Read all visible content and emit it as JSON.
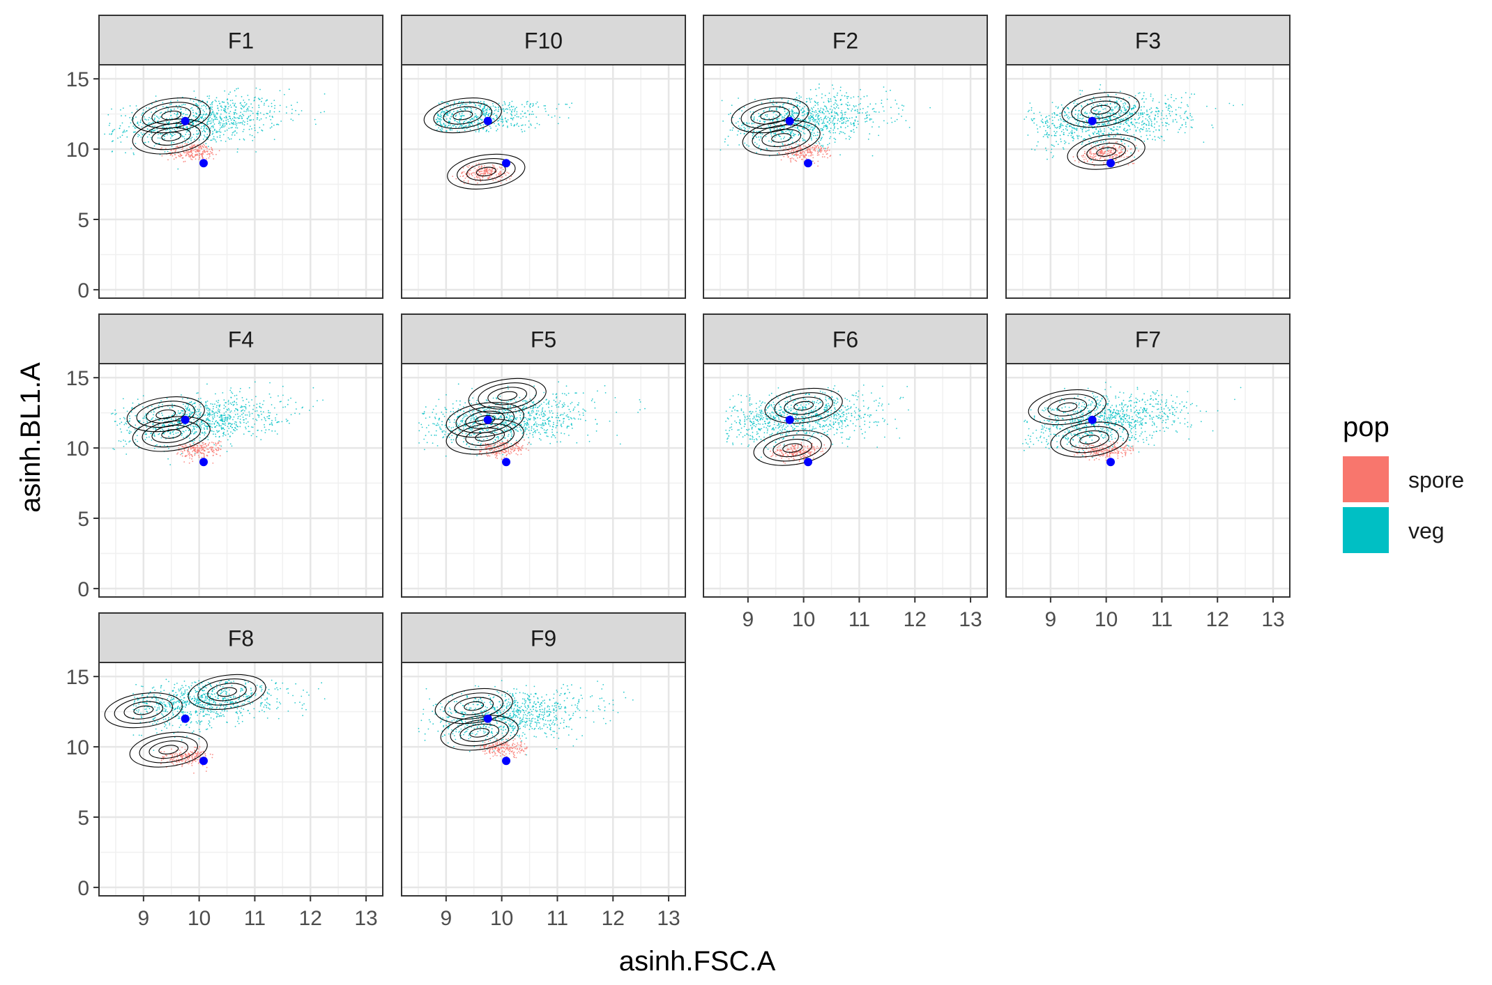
{
  "chart_data": {
    "type": "scatter",
    "facet_variable": "sample",
    "xlabel": "asinh.FSC.A",
    "ylabel": "asinh.BL1.A",
    "xlim": [
      8.2,
      13.3
    ],
    "ylim": [
      -0.6,
      16.0
    ],
    "x_ticks": [
      9,
      10,
      11,
      12,
      13
    ],
    "y_ticks": [
      0,
      5,
      10,
      15
    ],
    "grid": true,
    "legend": {
      "title": "pop",
      "position": "right",
      "entries": [
        {
          "name": "spore",
          "color": "#F8766D"
        },
        {
          "name": "veg",
          "color": "#00BFC4"
        }
      ]
    },
    "reference_points_color": "#0000FF",
    "contour_color": "#000000",
    "panels": [
      {
        "label": "F1",
        "reference_points": [
          {
            "x": 9.75,
            "y": 12.0
          },
          {
            "x": 10.08,
            "y": 9.0
          }
        ],
        "veg": {
          "x_mean": 10.0,
          "y_mean": 12.0,
          "x_range": [
            8.3,
            12.9
          ],
          "y_range": [
            8.5,
            14.8
          ]
        },
        "spore": {
          "x_mean": 9.9,
          "y_mean": 9.8,
          "x_range": [
            9.3,
            10.4
          ],
          "y_range": [
            7.5,
            10.6
          ]
        },
        "contour_peaks": [
          {
            "x": 9.5,
            "y": 12.4
          },
          {
            "x": 9.5,
            "y": 10.9
          }
        ]
      },
      {
        "label": "F10",
        "reference_points": [
          {
            "x": 9.75,
            "y": 12.0
          },
          {
            "x": 10.08,
            "y": 9.0
          }
        ],
        "veg": {
          "x_mean": 9.3,
          "y_mean": 12.3,
          "x_range": [
            8.8,
            11.3
          ],
          "y_range": [
            11.2,
            13.4
          ]
        },
        "spore": {
          "x_mean": 9.7,
          "y_mean": 8.3,
          "x_range": [
            9.1,
            10.3
          ],
          "y_range": [
            6.8,
            9.8
          ]
        },
        "contour_peaks": [
          {
            "x": 9.3,
            "y": 12.4
          },
          {
            "x": 9.72,
            "y": 8.4
          }
        ]
      },
      {
        "label": "F2",
        "reference_points": [
          {
            "x": 9.75,
            "y": 12.0
          },
          {
            "x": 10.08,
            "y": 9.0
          }
        ],
        "veg": {
          "x_mean": 10.0,
          "y_mean": 12.0,
          "x_range": [
            8.5,
            12.9
          ],
          "y_range": [
            8.5,
            14.8
          ]
        },
        "spore": {
          "x_mean": 10.0,
          "y_mean": 9.8,
          "x_range": [
            9.5,
            10.5
          ],
          "y_range": [
            8.0,
            10.6
          ]
        },
        "contour_peaks": [
          {
            "x": 9.4,
            "y": 12.4
          },
          {
            "x": 9.6,
            "y": 10.8
          }
        ]
      },
      {
        "label": "F3",
        "reference_points": [
          {
            "x": 9.75,
            "y": 12.0
          },
          {
            "x": 10.08,
            "y": 9.0
          }
        ],
        "veg": {
          "x_mean": 10.0,
          "y_mean": 12.0,
          "x_range": [
            8.5,
            12.8
          ],
          "y_range": [
            8.0,
            14.8
          ]
        },
        "spore": {
          "x_mean": 10.0,
          "y_mean": 9.7,
          "x_range": [
            9.4,
            10.6
          ],
          "y_range": [
            8.5,
            10.6
          ]
        },
        "contour_peaks": [
          {
            "x": 9.9,
            "y": 12.8
          },
          {
            "x": 10.0,
            "y": 9.8
          }
        ]
      },
      {
        "label": "F4",
        "reference_points": [
          {
            "x": 9.75,
            "y": 12.0
          },
          {
            "x": 10.08,
            "y": 9.0
          }
        ],
        "veg": {
          "x_mean": 10.0,
          "y_mean": 12.0,
          "x_range": [
            8.4,
            12.9
          ],
          "y_range": [
            8.5,
            14.8
          ]
        },
        "spore": {
          "x_mean": 10.0,
          "y_mean": 9.9,
          "x_range": [
            9.6,
            10.4
          ],
          "y_range": [
            8.5,
            10.5
          ]
        },
        "contour_peaks": [
          {
            "x": 9.4,
            "y": 12.4
          },
          {
            "x": 9.5,
            "y": 11.0
          }
        ]
      },
      {
        "label": "F5",
        "reference_points": [
          {
            "x": 9.75,
            "y": 12.0
          },
          {
            "x": 10.08,
            "y": 9.0
          }
        ],
        "veg": {
          "x_mean": 10.1,
          "y_mean": 12.0,
          "x_range": [
            8.5,
            12.9
          ],
          "y_range": [
            8.5,
            14.8
          ]
        },
        "spore": {
          "x_mean": 10.0,
          "y_mean": 9.9,
          "x_range": [
            9.6,
            10.5
          ],
          "y_range": [
            8.8,
            10.6
          ]
        },
        "contour_peaks": [
          {
            "x": 10.1,
            "y": 13.7
          },
          {
            "x": 9.7,
            "y": 12.0
          },
          {
            "x": 9.7,
            "y": 10.8
          }
        ]
      },
      {
        "label": "F6",
        "reference_points": [
          {
            "x": 9.75,
            "y": 12.0
          },
          {
            "x": 10.08,
            "y": 9.0
          }
        ],
        "veg": {
          "x_mean": 9.9,
          "y_mean": 12.2,
          "x_range": [
            8.6,
            12.0
          ],
          "y_range": [
            8.0,
            14.5
          ]
        },
        "spore": {
          "x_mean": 9.9,
          "y_mean": 9.7,
          "x_range": [
            9.4,
            10.4
          ],
          "y_range": [
            8.8,
            10.5
          ]
        },
        "contour_peaks": [
          {
            "x": 10.0,
            "y": 13.0
          },
          {
            "x": 9.8,
            "y": 10.0
          }
        ]
      },
      {
        "label": "F7",
        "reference_points": [
          {
            "x": 9.75,
            "y": 12.0
          },
          {
            "x": 10.08,
            "y": 9.0
          }
        ],
        "veg": {
          "x_mean": 10.0,
          "y_mean": 12.0,
          "x_range": [
            8.5,
            12.9
          ],
          "y_range": [
            8.2,
            14.8
          ]
        },
        "spore": {
          "x_mean": 10.0,
          "y_mean": 9.8,
          "x_range": [
            9.4,
            10.5
          ],
          "y_range": [
            8.0,
            10.5
          ]
        },
        "contour_peaks": [
          {
            "x": 9.3,
            "y": 12.9
          },
          {
            "x": 9.7,
            "y": 10.6
          }
        ]
      },
      {
        "label": "F8",
        "reference_points": [
          {
            "x": 9.75,
            "y": 12.0
          },
          {
            "x": 10.08,
            "y": 9.0
          }
        ],
        "veg": {
          "x_mean": 10.0,
          "y_mean": 13.2,
          "x_range": [
            8.8,
            12.5
          ],
          "y_range": [
            8.5,
            14.8
          ]
        },
        "spore": {
          "x_mean": 9.8,
          "y_mean": 9.3,
          "x_range": [
            9.3,
            10.3
          ],
          "y_range": [
            8.0,
            10.0
          ]
        },
        "contour_peaks": [
          {
            "x": 9.0,
            "y": 12.6
          },
          {
            "x": 10.5,
            "y": 13.9
          },
          {
            "x": 9.45,
            "y": 9.8
          }
        ]
      },
      {
        "label": "F9",
        "reference_points": [
          {
            "x": 9.75,
            "y": 12.0
          },
          {
            "x": 10.08,
            "y": 9.0
          }
        ],
        "veg": {
          "x_mean": 10.1,
          "y_mean": 12.2,
          "x_range": [
            8.5,
            12.9
          ],
          "y_range": [
            8.5,
            14.8
          ]
        },
        "spore": {
          "x_mean": 10.0,
          "y_mean": 9.9,
          "x_range": [
            9.6,
            10.5
          ],
          "y_range": [
            8.8,
            10.6
          ]
        },
        "contour_peaks": [
          {
            "x": 9.5,
            "y": 12.9
          },
          {
            "x": 9.6,
            "y": 11.0
          }
        ]
      }
    ]
  }
}
